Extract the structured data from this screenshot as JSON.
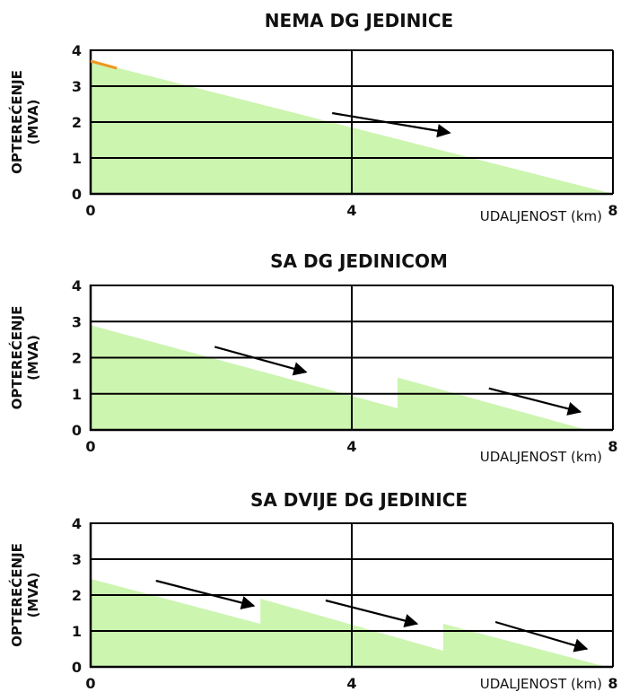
{
  "chart_data": [
    {
      "type": "area",
      "title": "NEMA DG JEDINICE",
      "ylabel": [
        "OPTEREĆENJE",
        "(MVA)"
      ],
      "xlabel": "UDALJENOST (km)",
      "xlim": [
        0,
        8
      ],
      "ylim": [
        0,
        4
      ],
      "yticks": [
        "0",
        "1",
        "2",
        "3",
        "4"
      ],
      "xticks": [
        "0",
        "4",
        "8"
      ],
      "grid": "horizontal at every integer, vertical at x=4",
      "fill_color": "#ccf5b0",
      "points": [
        [
          0,
          3.7
        ],
        [
          8,
          0
        ]
      ],
      "arrows": [
        {
          "from": [
            3.7,
            2.25
          ],
          "to": [
            5.5,
            1.7
          ]
        }
      ],
      "accent": {
        "color": "#f0961e",
        "from": [
          0,
          3.7
        ],
        "to": [
          0.4,
          3.5
        ]
      }
    },
    {
      "type": "area",
      "title": "SA DG JEDINICOM",
      "ylabel": [
        "OPTEREĆENJE",
        "(MVA)"
      ],
      "xlabel": "UDALJENOST (km)",
      "xlim": [
        0,
        8
      ],
      "ylim": [
        0,
        4
      ],
      "yticks": [
        "0",
        "1",
        "2",
        "3",
        "4"
      ],
      "xticks": [
        "0",
        "4",
        "8"
      ],
      "grid": "horizontal at every integer, vertical at x=4",
      "fill_color": "#ccf5b0",
      "points": [
        [
          0,
          2.9
        ],
        [
          4.7,
          0.6
        ],
        [
          4.7,
          1.45
        ],
        [
          7.6,
          0
        ]
      ],
      "arrows": [
        {
          "from": [
            1.9,
            2.3
          ],
          "to": [
            3.3,
            1.6
          ]
        },
        {
          "from": [
            6.1,
            1.15
          ],
          "to": [
            7.5,
            0.5
          ]
        }
      ]
    },
    {
      "type": "area",
      "title": "SA DVIJE DG JEDINICE",
      "ylabel": [
        "OPTEREĆENJE",
        "(MVA)"
      ],
      "xlabel": "UDALJENOST (km)",
      "xlim": [
        0,
        8
      ],
      "ylim": [
        0,
        4
      ],
      "yticks": [
        "0",
        "1",
        "2",
        "3",
        "4"
      ],
      "xticks": [
        "0",
        "4",
        "8"
      ],
      "grid": "horizontal at every integer, vertical at x=4",
      "fill_color": "#ccf5b0",
      "points": [
        [
          0,
          2.45
        ],
        [
          2.6,
          1.2
        ],
        [
          2.6,
          1.9
        ],
        [
          5.4,
          0.45
        ],
        [
          5.4,
          1.2
        ],
        [
          7.9,
          0
        ]
      ],
      "arrows": [
        {
          "from": [
            1.0,
            2.4
          ],
          "to": [
            2.5,
            1.7
          ]
        },
        {
          "from": [
            3.6,
            1.85
          ],
          "to": [
            5.0,
            1.2
          ]
        },
        {
          "from": [
            6.2,
            1.25
          ],
          "to": [
            7.6,
            0.5
          ]
        }
      ]
    }
  ]
}
